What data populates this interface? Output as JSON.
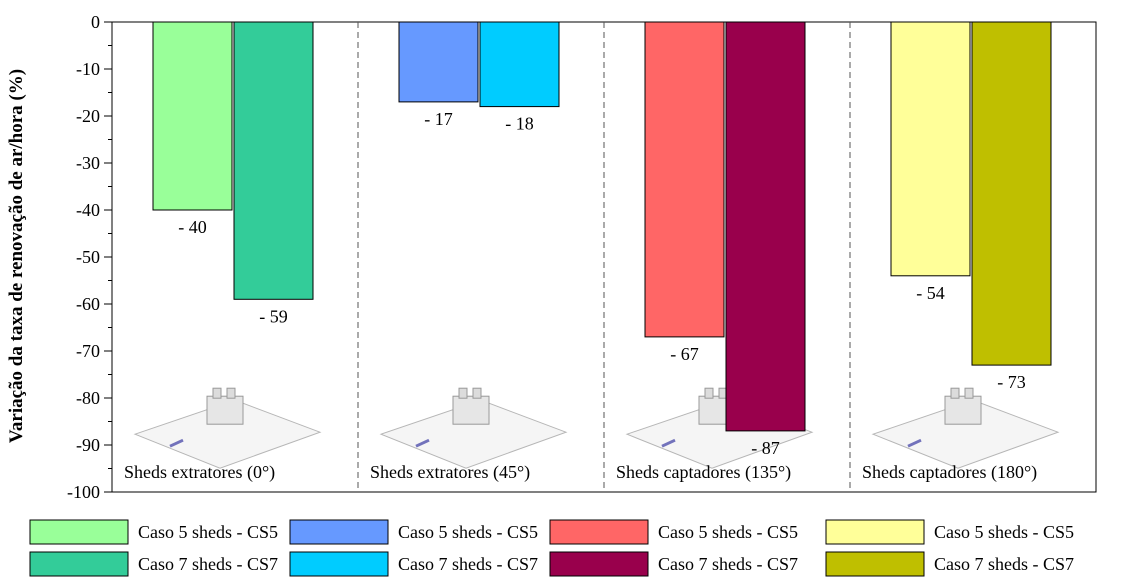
{
  "chart_data": {
    "type": "bar",
    "ylabel": "Variação da taxa de renovação de ar/hora (%)",
    "ylim": [
      -100,
      0
    ],
    "yticks": [
      0,
      -10,
      -20,
      -30,
      -40,
      -50,
      -60,
      -70,
      -80,
      -90,
      -100
    ],
    "groups": [
      {
        "label": "Sheds extratores (0°)",
        "bars": [
          {
            "series": "Caso 5 sheds - CS5",
            "value": -40,
            "value_label": "- 40",
            "color": "#99FF99"
          },
          {
            "series": "Caso 7 sheds - CS7",
            "value": -59,
            "value_label": "- 59",
            "color": "#33CC99"
          }
        ]
      },
      {
        "label": "Sheds extratores (45°)",
        "bars": [
          {
            "series": "Caso 5 sheds - CS5",
            "value": -17,
            "value_label": "- 17",
            "color": "#6699FF"
          },
          {
            "series": "Caso 7 sheds - CS7",
            "value": -18,
            "value_label": "- 18",
            "color": "#00CCFF"
          }
        ]
      },
      {
        "label": "Sheds captadores (135°)",
        "bars": [
          {
            "series": "Caso 5 sheds - CS5",
            "value": -67,
            "value_label": "- 67",
            "color": "#FF6666"
          },
          {
            "series": "Caso 7 sheds - CS7",
            "value": -87,
            "value_label": "- 87",
            "color": "#99004C"
          }
        ]
      },
      {
        "label": "Sheds captadores (180°)",
        "bars": [
          {
            "series": "Caso 5 sheds - CS5",
            "value": -54,
            "value_label": "- 54",
            "color": "#FFFF99"
          },
          {
            "series": "Caso 7 sheds - CS7",
            "value": -73,
            "value_label": "- 73",
            "color": "#BFBF00"
          }
        ]
      }
    ],
    "legend": {
      "placement": "bottom",
      "columns": [
        [
          {
            "label": "Caso 5 sheds - CS5",
            "color": "#99FF99"
          },
          {
            "label": "Caso 7 sheds - CS7",
            "color": "#33CC99"
          }
        ],
        [
          {
            "label": "Caso 5 sheds - CS5",
            "color": "#6699FF"
          },
          {
            "label": "Caso 7 sheds - CS7",
            "color": "#00CCFF"
          }
        ],
        [
          {
            "label": "Caso 5 sheds - CS5",
            "color": "#FF6666"
          },
          {
            "label": "Caso 7 sheds - CS7",
            "color": "#99004C"
          }
        ],
        [
          {
            "label": "Caso 5 sheds - CS5",
            "color": "#FFFF99"
          },
          {
            "label": "Caso 7 sheds - CS7",
            "color": "#BFBF00"
          }
        ]
      ]
    },
    "grid": false,
    "group_dividers": "dashed"
  }
}
